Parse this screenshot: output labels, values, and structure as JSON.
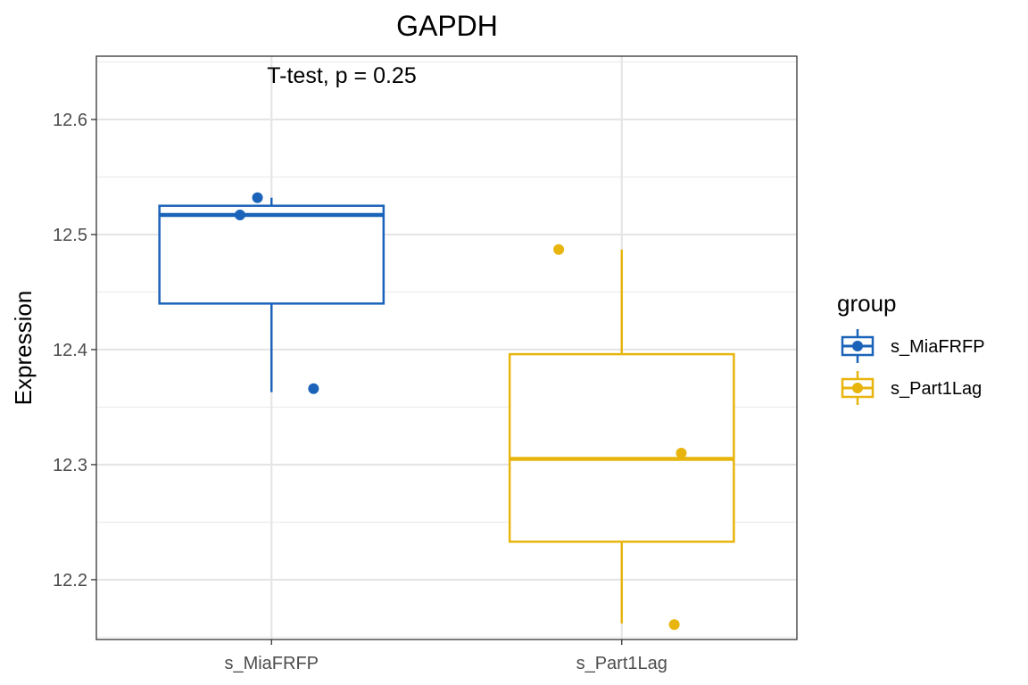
{
  "chart_data": {
    "type": "boxplot",
    "title": "GAPDH",
    "annotation": "T-test, p = 0.25",
    "xlabel": "",
    "ylabel": "Expression",
    "ylim": [
      12.148,
      12.655
    ],
    "yticks": [
      12.2,
      12.3,
      12.4,
      12.5,
      12.6
    ],
    "ytick_labels": [
      "12.2",
      "12.3",
      "12.4",
      "12.5",
      "12.6"
    ],
    "categories": [
      "s_MiaFRFP",
      "s_Part1Lag"
    ],
    "legend": {
      "title": "group",
      "position": "right",
      "entries": [
        "s_MiaFRFP",
        "s_Part1Lag"
      ]
    },
    "series": [
      {
        "name": "s_MiaFRFP",
        "color": "#1b63b9",
        "box": {
          "whisker_low": 12.363,
          "q1": 12.44,
          "median": 12.517,
          "q3": 12.525,
          "whisker_high": 12.532
        },
        "points": [
          12.532,
          12.517,
          12.366
        ],
        "jitter": [
          -0.04,
          -0.09,
          0.12
        ]
      },
      {
        "name": "s_Part1Lag",
        "color": "#e8b50e",
        "box": {
          "whisker_low": 12.162,
          "q1": 12.233,
          "median": 12.305,
          "q3": 12.396,
          "whisker_high": 12.487
        },
        "points": [
          12.487,
          12.31,
          12.161
        ],
        "jitter": [
          -0.18,
          0.17,
          0.15
        ]
      }
    ]
  }
}
